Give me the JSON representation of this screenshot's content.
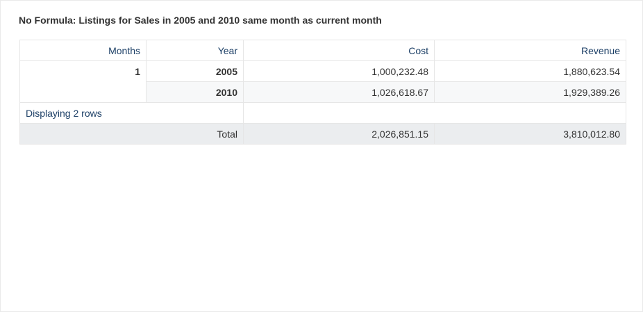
{
  "report": {
    "title": "No Formula: Listings for Sales in 2005 and 2010 same month as current month"
  },
  "table": {
    "headers": {
      "months": "Months",
      "year": "Year",
      "cost": "Cost",
      "revenue": "Revenue"
    },
    "group": {
      "month": "1",
      "rows": [
        {
          "year": "2005",
          "cost": "1,000,232.48",
          "revenue": "1,880,623.54"
        },
        {
          "year": "2010",
          "cost": "1,026,618.67",
          "revenue": "1,929,389.26"
        }
      ]
    },
    "row_count_text": "Displaying 2 rows",
    "total": {
      "label": "Total",
      "cost": "2,026,851.15",
      "revenue": "3,810,012.80"
    }
  }
}
